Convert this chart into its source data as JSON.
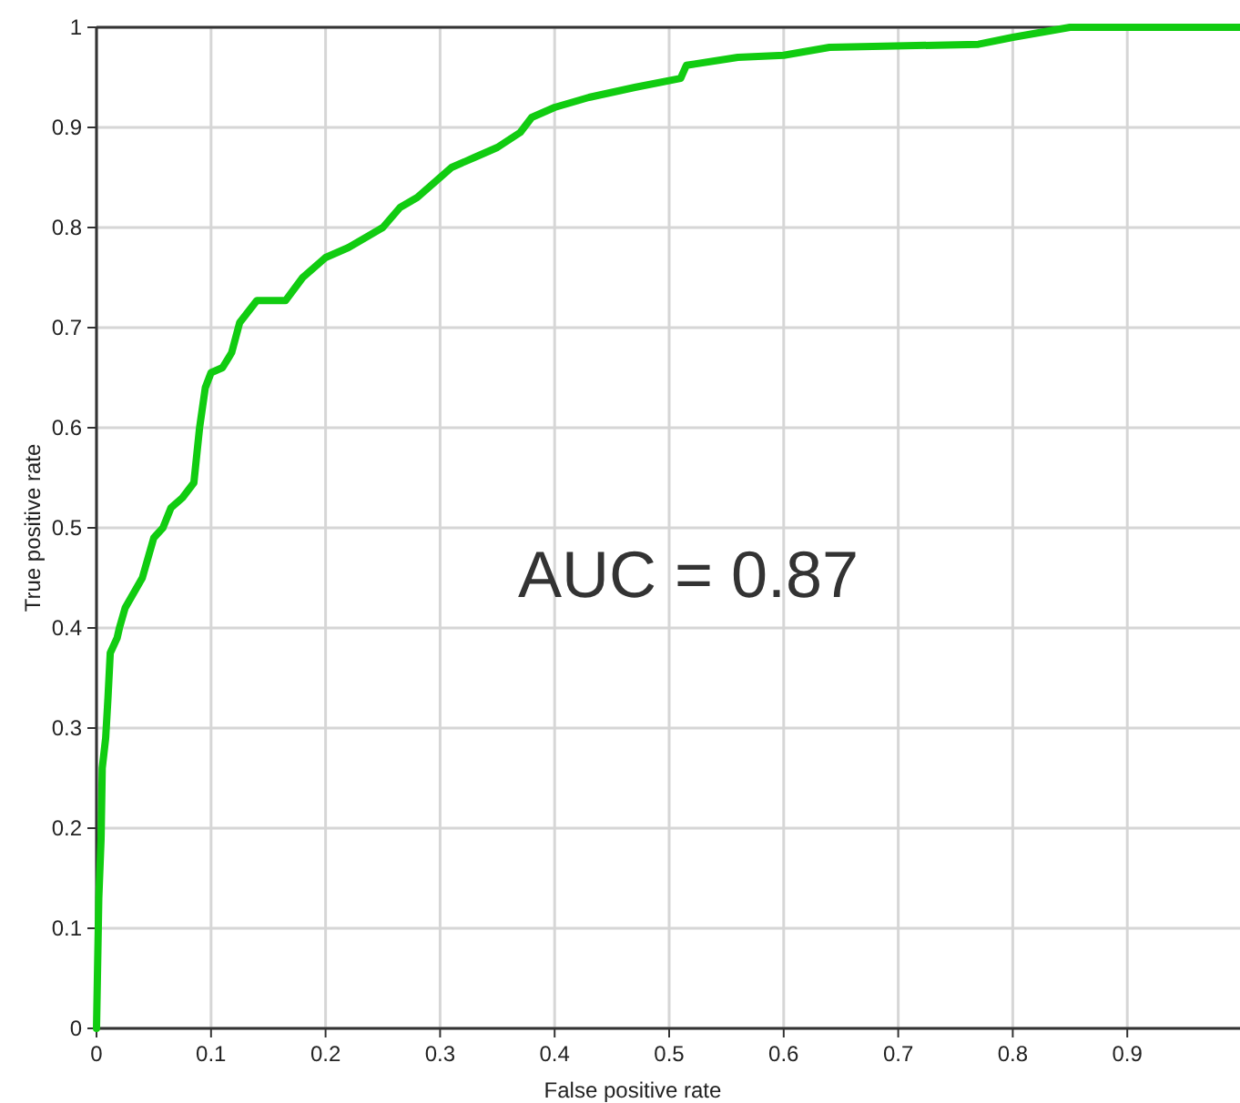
{
  "chart_data": {
    "type": "line",
    "xlabel": "False positive rate",
    "ylabel": "True positive rate",
    "annotations": [
      "AUC = 0.87"
    ],
    "xlim": [
      0,
      1
    ],
    "xticks": [
      0,
      0.1,
      0.2,
      0.3,
      0.4,
      0.5,
      0.6,
      0.7,
      0.8,
      0.9
    ],
    "ylim": [
      0,
      1
    ],
    "yticks": [
      0,
      0.1,
      0.2,
      0.3,
      0.4,
      0.5,
      0.6,
      0.7,
      0.8,
      0.9,
      1
    ],
    "grid": true,
    "marker": "none",
    "line_style": "solid",
    "series": [
      {
        "color": "#11cc11",
        "x": [
          0,
          0.002,
          0.004,
          0.005,
          0.008,
          0.01,
          0.012,
          0.018,
          0.02,
          0.025,
          0.03,
          0.035,
          0.04,
          0.045,
          0.05,
          0.058,
          0.065,
          0.075,
          0.085,
          0.09,
          0.095,
          0.1,
          0.11,
          0.118,
          0.125,
          0.14,
          0.165,
          0.18,
          0.2,
          0.22,
          0.25,
          0.265,
          0.28,
          0.3,
          0.31,
          0.33,
          0.35,
          0.37,
          0.38,
          0.4,
          0.43,
          0.47,
          0.51,
          0.515,
          0.56,
          0.6,
          0.64,
          0.77,
          0.8,
          0.85,
          0.97,
          1
        ],
        "values": [
          0,
          0.13,
          0.19,
          0.26,
          0.29,
          0.33,
          0.375,
          0.39,
          0.4,
          0.42,
          0.43,
          0.44,
          0.45,
          0.47,
          0.49,
          0.5,
          0.52,
          0.53,
          0.545,
          0.6,
          0.64,
          0.655,
          0.66,
          0.675,
          0.705,
          0.727,
          0.727,
          0.75,
          0.77,
          0.78,
          0.8,
          0.82,
          0.83,
          0.85,
          0.86,
          0.87,
          0.88,
          0.895,
          0.91,
          0.92,
          0.93,
          0.94,
          0.949,
          0.962,
          0.97,
          0.972,
          0.98,
          0.983,
          0.99,
          1,
          1,
          1
        ]
      }
    ]
  }
}
